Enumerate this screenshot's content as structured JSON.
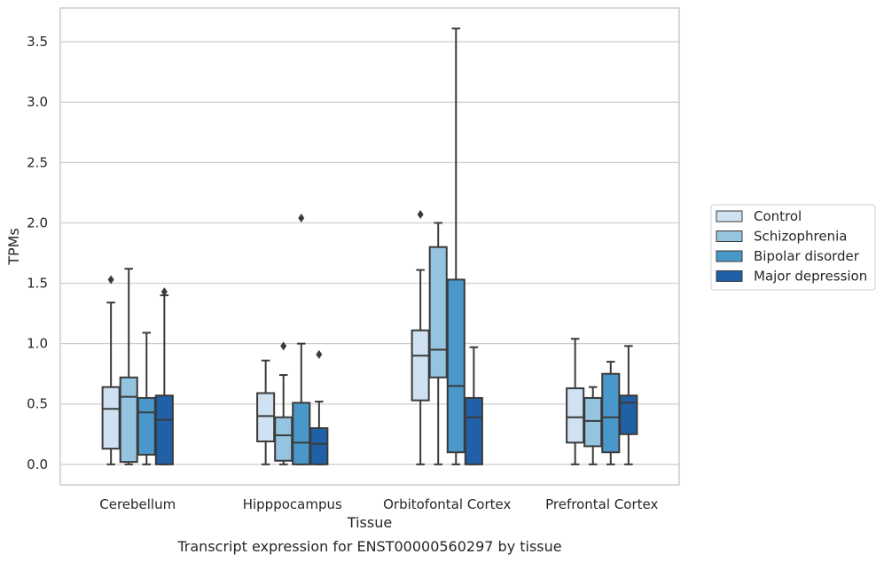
{
  "caption": "Transcript expression for ENST00000560297 by tissue",
  "colors": {
    "grid": "#cccccc",
    "frame": "#cccccc",
    "box_edge": "#3a3a3a",
    "series": [
      "#d0e1f2",
      "#94c4df",
      "#4a98c9",
      "#2060a7"
    ]
  },
  "chart_data": {
    "type": "box",
    "title": "",
    "xlabel": "Tissue",
    "ylabel": "TPMs",
    "ylim": [
      -0.17,
      3.78
    ],
    "yticks": [
      0.0,
      0.5,
      1.0,
      1.5,
      2.0,
      2.5,
      3.0,
      3.5
    ],
    "ytick_labels": [
      "0.0",
      "0.5",
      "1.0",
      "1.5",
      "2.0",
      "2.5",
      "3.0",
      "3.5"
    ],
    "grid": "horizontal",
    "legend_position": "right",
    "categories": [
      "Cerebellum",
      "Hipppocampus",
      "Orbitofontal Cortex",
      "Prefrontal Cortex"
    ],
    "series": [
      {
        "name": "Control",
        "boxes": [
          {
            "whisker_low": 0.0,
            "q1": 0.13,
            "median": 0.46,
            "q3": 0.64,
            "whisker_high": 1.34,
            "outliers": [
              1.53
            ]
          },
          {
            "whisker_low": 0.0,
            "q1": 0.19,
            "median": 0.4,
            "q3": 0.59,
            "whisker_high": 0.86,
            "outliers": []
          },
          {
            "whisker_low": 0.0,
            "q1": 0.53,
            "median": 0.9,
            "q3": 1.11,
            "whisker_high": 1.61,
            "outliers": [
              2.07
            ]
          },
          {
            "whisker_low": 0.0,
            "q1": 0.18,
            "median": 0.39,
            "q3": 0.63,
            "whisker_high": 1.04,
            "outliers": []
          }
        ]
      },
      {
        "name": "Schizophrenia",
        "boxes": [
          {
            "whisker_low": 0.0,
            "q1": 0.02,
            "median": 0.56,
            "q3": 0.72,
            "whisker_high": 1.62,
            "outliers": []
          },
          {
            "whisker_low": 0.0,
            "q1": 0.03,
            "median": 0.24,
            "q3": 0.39,
            "whisker_high": 0.74,
            "outliers": [
              0.98
            ]
          },
          {
            "whisker_low": 0.0,
            "q1": 0.72,
            "median": 0.95,
            "q3": 1.8,
            "whisker_high": 2.0,
            "outliers": []
          },
          {
            "whisker_low": 0.0,
            "q1": 0.15,
            "median": 0.36,
            "q3": 0.55,
            "whisker_high": 0.64,
            "outliers": []
          }
        ]
      },
      {
        "name": "Bipolar disorder",
        "boxes": [
          {
            "whisker_low": 0.0,
            "q1": 0.08,
            "median": 0.43,
            "q3": 0.55,
            "whisker_high": 1.09,
            "outliers": []
          },
          {
            "whisker_low": 0.0,
            "q1": 0.0,
            "median": 0.18,
            "q3": 0.51,
            "whisker_high": 1.0,
            "outliers": [
              2.04
            ]
          },
          {
            "whisker_low": 0.0,
            "q1": 0.1,
            "median": 0.65,
            "q3": 1.53,
            "whisker_high": 3.61,
            "outliers": []
          },
          {
            "whisker_low": 0.0,
            "q1": 0.1,
            "median": 0.39,
            "q3": 0.75,
            "whisker_high": 0.85,
            "outliers": []
          }
        ]
      },
      {
        "name": "Major depression",
        "boxes": [
          {
            "whisker_low": 0.0,
            "q1": 0.0,
            "median": 0.37,
            "q3": 0.57,
            "whisker_high": 1.4,
            "outliers": [
              1.43
            ]
          },
          {
            "whisker_low": 0.0,
            "q1": 0.0,
            "median": 0.17,
            "q3": 0.3,
            "whisker_high": 0.52,
            "outliers": [
              0.91
            ]
          },
          {
            "whisker_low": 0.0,
            "q1": 0.0,
            "median": 0.39,
            "q3": 0.55,
            "whisker_high": 0.97,
            "outliers": []
          },
          {
            "whisker_low": 0.0,
            "q1": 0.25,
            "median": 0.51,
            "q3": 0.57,
            "whisker_high": 0.98,
            "outliers": []
          }
        ]
      }
    ]
  }
}
